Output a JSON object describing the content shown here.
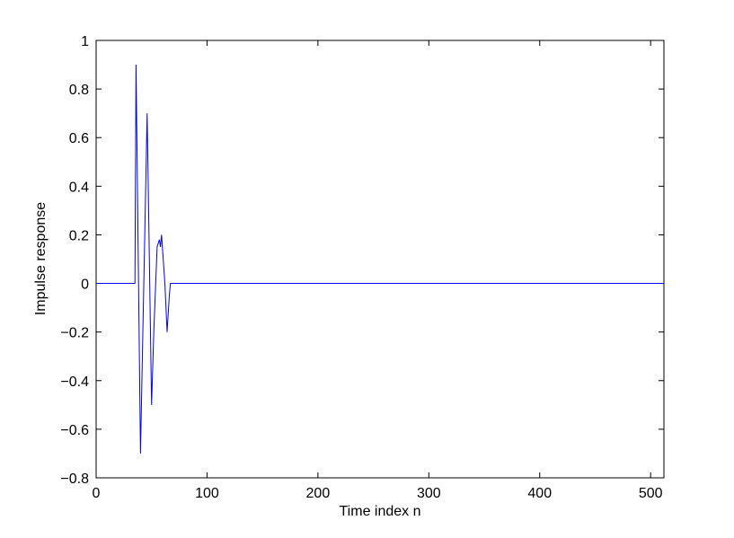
{
  "chart_data": {
    "type": "line",
    "xlabel": "Time index n",
    "ylabel": "Impulse response",
    "x": [
      0,
      35,
      36,
      40,
      46,
      50,
      52,
      55,
      57,
      58,
      59,
      62,
      64,
      66,
      67,
      512
    ],
    "series": [
      {
        "color": "#0000ff",
        "values": [
          0,
          0,
          0.9,
          -0.7,
          0.7,
          -0.5,
          -0.2,
          0.15,
          0.18,
          0.15,
          0.2,
          0,
          -0.2,
          -0.05,
          0,
          0
        ]
      }
    ],
    "xlim": [
      0,
      512
    ],
    "xticks": [
      0,
      100,
      200,
      300,
      400,
      500
    ],
    "ylim": [
      -0.8,
      1
    ],
    "yticks": [
      {
        "value": -0.8,
        "label": "−0.8"
      },
      {
        "value": -0.6,
        "label": "−0.6"
      },
      {
        "value": -0.4,
        "label": "−0.4"
      },
      {
        "value": -0.2,
        "label": "−0.2"
      },
      0,
      0.2,
      0.4,
      0.6,
      0.8,
      1
    ],
    "grid": false
  }
}
